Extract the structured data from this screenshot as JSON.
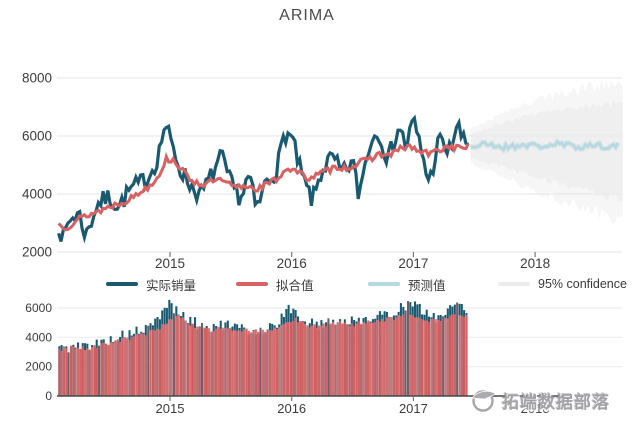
{
  "title": "ARIMA",
  "legend": {
    "items": [
      {
        "label": "实际销量",
        "color": "#1a5a71"
      },
      {
        "label": "拟合值",
        "color": "#d96161"
      },
      {
        "label": "预测值",
        "color": "#b6d8e0"
      },
      {
        "label": "95% confidence",
        "color": "#ececec"
      }
    ]
  },
  "watermark": {
    "text": "拓端数据部落",
    "logo": "tecdat-logo-icon",
    "color": "#a3a3a6"
  },
  "colors": {
    "actual": "#1a5a71",
    "fitted": "#d96161",
    "forecast": "#b6d8e0",
    "confidence_outer": "#f6f6f6",
    "confidence_inner": "#efefef",
    "grid": "#e9e9e9",
    "axis_text": "#3c3c3c",
    "baseline": "#474747",
    "bar_overlap": "#6e5e6c",
    "bar_shades": [
      "#d85e5e",
      "#dd6b6b",
      "#d96464",
      "#e07373"
    ]
  },
  "chart_data": [
    {
      "type": "line",
      "title": "ARIMA",
      "xlabel": "",
      "ylabel": "",
      "x_ticks": [
        2015,
        2016,
        2017,
        2018
      ],
      "y_ticks": [
        2000,
        4000,
        6000,
        8000
      ],
      "xlim": [
        2014.08,
        2018.72
      ],
      "ylim": [
        1650,
        8350
      ],
      "grid": true,
      "legend_position": "bottom",
      "series": [
        {
          "name": "实际销量",
          "kind": "history-line",
          "noise": 330,
          "range": [
            2014.085,
            2017.46
          ],
          "anchors": [
            [
              2014.08,
              3050
            ],
            [
              2014.12,
              2400
            ],
            [
              2014.17,
              3100
            ],
            [
              2014.25,
              3350
            ],
            [
              2014.31,
              2550
            ],
            [
              2014.4,
              3650
            ],
            [
              2014.5,
              3900
            ],
            [
              2014.58,
              3550
            ],
            [
              2014.67,
              4150
            ],
            [
              2014.75,
              4350
            ],
            [
              2014.83,
              4650
            ],
            [
              2014.9,
              5250
            ],
            [
              2014.96,
              6450
            ],
            [
              2015.02,
              5600
            ],
            [
              2015.08,
              4900
            ],
            [
              2015.17,
              4300
            ],
            [
              2015.25,
              3950
            ],
            [
              2015.33,
              4550
            ],
            [
              2015.42,
              5300
            ],
            [
              2015.5,
              4350
            ],
            [
              2015.58,
              3850
            ],
            [
              2015.65,
              4650
            ],
            [
              2015.71,
              3400
            ],
            [
              2015.79,
              4450
            ],
            [
              2015.88,
              4850
            ],
            [
              2015.94,
              6100
            ],
            [
              2016.0,
              5950
            ],
            [
              2016.08,
              4650
            ],
            [
              2016.17,
              3750
            ],
            [
              2016.25,
              4850
            ],
            [
              2016.33,
              5250
            ],
            [
              2016.42,
              4700
            ],
            [
              2016.5,
              5150
            ],
            [
              2016.55,
              3950
            ],
            [
              2016.63,
              5600
            ],
            [
              2016.71,
              6250
            ],
            [
              2016.79,
              5150
            ],
            [
              2016.88,
              6350
            ],
            [
              2016.94,
              5650
            ],
            [
              2017.0,
              6550
            ],
            [
              2017.08,
              5250
            ],
            [
              2017.13,
              4350
            ],
            [
              2017.21,
              5900
            ],
            [
              2017.29,
              5400
            ],
            [
              2017.36,
              6400
            ],
            [
              2017.42,
              5700
            ],
            [
              2017.46,
              5750
            ]
          ]
        },
        {
          "name": "拟合值",
          "kind": "history-line",
          "noise": 110,
          "range": [
            2014.085,
            2017.46
          ],
          "anchors": [
            [
              2014.08,
              2980
            ],
            [
              2014.15,
              2850
            ],
            [
              2014.25,
              3150
            ],
            [
              2014.33,
              3280
            ],
            [
              2014.42,
              3420
            ],
            [
              2014.5,
              3560
            ],
            [
              2014.58,
              3680
            ],
            [
              2014.67,
              3820
            ],
            [
              2014.75,
              4050
            ],
            [
              2014.83,
              4280
            ],
            [
              2014.9,
              4600
            ],
            [
              2014.97,
              5200
            ],
            [
              2015.04,
              5150
            ],
            [
              2015.13,
              4650
            ],
            [
              2015.21,
              4400
            ],
            [
              2015.29,
              4320
            ],
            [
              2015.38,
              4500
            ],
            [
              2015.46,
              4380
            ],
            [
              2015.54,
              4220
            ],
            [
              2015.63,
              4280
            ],
            [
              2015.71,
              4180
            ],
            [
              2015.79,
              4320
            ],
            [
              2015.88,
              4520
            ],
            [
              2015.96,
              4900
            ],
            [
              2016.04,
              4780
            ],
            [
              2016.13,
              4550
            ],
            [
              2016.21,
              4650
            ],
            [
              2016.29,
              4800
            ],
            [
              2016.38,
              4950
            ],
            [
              2016.46,
              4880
            ],
            [
              2016.54,
              5050
            ],
            [
              2016.63,
              5180
            ],
            [
              2016.71,
              5380
            ],
            [
              2016.79,
              5320
            ],
            [
              2016.88,
              5520
            ],
            [
              2016.96,
              5650
            ],
            [
              2017.04,
              5480
            ],
            [
              2017.13,
              5380
            ],
            [
              2017.21,
              5520
            ],
            [
              2017.29,
              5650
            ],
            [
              2017.38,
              5580
            ],
            [
              2017.46,
              5680
            ]
          ]
        },
        {
          "name": "预测值",
          "kind": "forecast-line",
          "noise": 100,
          "range": [
            2017.47,
            2018.7
          ],
          "anchors": [
            [
              2017.47,
              5620
            ],
            [
              2017.6,
              5720
            ],
            [
              2017.75,
              5600
            ],
            [
              2017.9,
              5700
            ],
            [
              2018.05,
              5640
            ],
            [
              2018.2,
              5720
            ],
            [
              2018.35,
              5620
            ],
            [
              2018.5,
              5700
            ],
            [
              2018.6,
              5630
            ],
            [
              2018.7,
              5680
            ]
          ]
        },
        {
          "name": "95% confidence",
          "kind": "confidence-band",
          "range": [
            2017.47,
            2018.72
          ],
          "upper": [
            [
              2017.47,
              6250
            ],
            [
              2017.75,
              6800
            ],
            [
              2018.0,
              7250
            ],
            [
              2018.35,
              7600
            ],
            [
              2018.72,
              7850
            ]
          ],
          "lower": [
            [
              2017.47,
              5050
            ],
            [
              2017.75,
              4600
            ],
            [
              2018.0,
              4100
            ],
            [
              2018.35,
              3600
            ],
            [
              2018.72,
              3100
            ]
          ]
        }
      ]
    },
    {
      "type": "bar",
      "x_ticks": [
        2015,
        2016,
        2017,
        2018
      ],
      "y_ticks": [
        0,
        2000,
        4000,
        6000
      ],
      "xlim": [
        2014.08,
        2018.72
      ],
      "ylim": [
        0,
        6850
      ],
      "grid": true,
      "bar_range": [
        2014.09,
        2017.45
      ],
      "series": [
        {
          "name": "实际销量",
          "kind": "actual-bars",
          "noise": 380,
          "anchors": [
            [
              2014.09,
              3250
            ],
            [
              2014.25,
              3350
            ],
            [
              2014.4,
              3550
            ],
            [
              2014.55,
              3950
            ],
            [
              2014.7,
              4300
            ],
            [
              2014.85,
              4700
            ],
            [
              2014.95,
              5900
            ],
            [
              2015.0,
              6400
            ],
            [
              2015.05,
              5800
            ],
            [
              2015.15,
              5200
            ],
            [
              2015.3,
              4650
            ],
            [
              2015.45,
              4850
            ],
            [
              2015.6,
              4520
            ],
            [
              2015.75,
              4450
            ],
            [
              2015.9,
              5050
            ],
            [
              2015.98,
              6100
            ],
            [
              2016.05,
              5350
            ],
            [
              2016.2,
              4850
            ],
            [
              2016.35,
              5150
            ],
            [
              2016.5,
              5050
            ],
            [
              2016.65,
              5350
            ],
            [
              2016.8,
              5550
            ],
            [
              2016.9,
              6050
            ],
            [
              2016.98,
              6350
            ],
            [
              2017.08,
              5750
            ],
            [
              2017.2,
              5350
            ],
            [
              2017.3,
              5950
            ],
            [
              2017.38,
              6350
            ],
            [
              2017.45,
              5850
            ]
          ]
        },
        {
          "name": "拟合值",
          "kind": "fitted-bars",
          "noise": 150,
          "anchors": [
            [
              2014.09,
              3180
            ],
            [
              2014.2,
              3380
            ],
            [
              2014.3,
              3220
            ],
            [
              2014.4,
              3420
            ],
            [
              2014.5,
              3640
            ],
            [
              2014.6,
              3820
            ],
            [
              2014.7,
              4020
            ],
            [
              2014.8,
              4220
            ],
            [
              2014.9,
              4550
            ],
            [
              2015.0,
              5150
            ],
            [
              2015.07,
              5450
            ],
            [
              2015.15,
              4950
            ],
            [
              2015.25,
              4620
            ],
            [
              2015.35,
              4520
            ],
            [
              2015.45,
              4680
            ],
            [
              2015.55,
              4380
            ],
            [
              2015.65,
              4480
            ],
            [
              2015.75,
              4380
            ],
            [
              2015.85,
              4620
            ],
            [
              2015.95,
              4950
            ],
            [
              2016.02,
              5250
            ],
            [
              2016.1,
              4920
            ],
            [
              2016.2,
              4720
            ],
            [
              2016.3,
              4920
            ],
            [
              2016.4,
              5020
            ],
            [
              2016.5,
              4850
            ],
            [
              2016.6,
              5050
            ],
            [
              2016.7,
              5120
            ],
            [
              2016.8,
              5250
            ],
            [
              2016.9,
              5420
            ],
            [
              2017.0,
              5550
            ],
            [
              2017.1,
              5220
            ],
            [
              2017.2,
              5120
            ],
            [
              2017.3,
              5420
            ],
            [
              2017.4,
              5520
            ],
            [
              2017.45,
              5600
            ]
          ]
        }
      ]
    }
  ]
}
